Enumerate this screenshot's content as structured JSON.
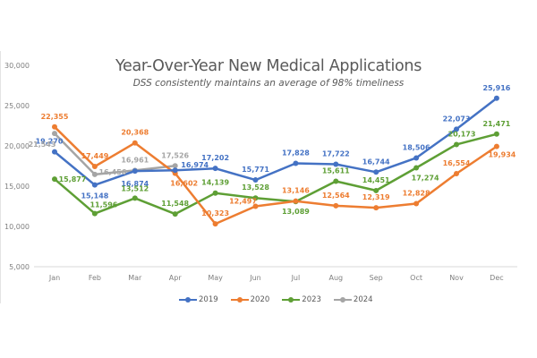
{
  "chart_data": {
    "type": "line",
    "title": "Year-Over-Year New Medical Applications",
    "subtitle": "DSS consistently maintains an average of 98% timeliness",
    "xlabel": "",
    "ylabel": "",
    "categories": [
      "Jan",
      "Feb",
      "Mar",
      "Apr",
      "May",
      "Jun",
      "Jul",
      "Aug",
      "Sep",
      "Oct",
      "Nov",
      "Dec"
    ],
    "ylim": [
      5000,
      30000
    ],
    "yticks": [
      5000,
      10000,
      15000,
      20000,
      25000,
      30000
    ],
    "ytick_labels": [
      "5,000",
      "10,000",
      "15,000",
      "20,000",
      "25,000",
      "30,000"
    ],
    "grid": false,
    "legend_position": "bottom",
    "series": [
      {
        "name": "2019",
        "color": "#4472C4",
        "values": [
          19270,
          15148,
          16874,
          16974,
          17202,
          15771,
          17828,
          17722,
          16744,
          18506,
          22073,
          25916
        ],
        "labels": [
          "19,270",
          "15,148",
          "16,874",
          "16,974",
          "17,202",
          "15,771",
          "17,828",
          "17,722",
          "16,744",
          "18,506",
          "22,073",
          "25,916"
        ]
      },
      {
        "name": "2020",
        "color": "#ED7D31",
        "values": [
          22355,
          17449,
          20368,
          16602,
          10323,
          12497,
          13146,
          12564,
          12319,
          12828,
          16554,
          19934
        ],
        "labels": [
          "22,355",
          "17,449",
          "20,368",
          "16,602",
          "10,323",
          "12,497",
          "13,146",
          "12,564",
          "12,319",
          "12,828",
          "16,554",
          "19,934"
        ]
      },
      {
        "name": "2023",
        "color": "#5E9F35",
        "values": [
          15877,
          11596,
          13512,
          11548,
          14139,
          13528,
          13089,
          15611,
          14451,
          17274,
          20173,
          21471
        ],
        "labels": [
          "15,877",
          "11,596",
          "13,512",
          "11,548",
          "14,139",
          "13,528",
          "13,089",
          "15,611",
          "14,451",
          "17,274",
          "20,173",
          "21,471"
        ]
      },
      {
        "name": "2024",
        "color": "#A5A5A5",
        "values": [
          21543,
          16456,
          16961,
          17526
        ],
        "labels": [
          "21,543",
          "16,456",
          "16,961",
          "17,526"
        ]
      }
    ]
  }
}
